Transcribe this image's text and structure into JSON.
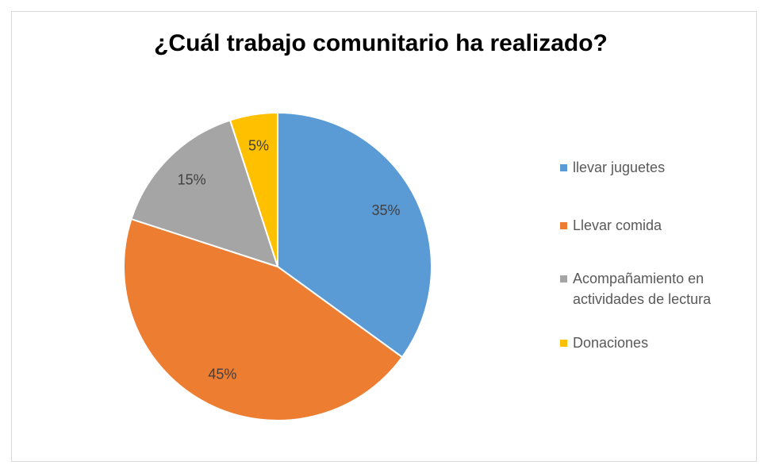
{
  "chart_data": {
    "type": "pie",
    "title": "¿Cuál trabajo comunitario ha realizado?",
    "categories": [
      "llevar juguetes",
      "Llevar comida",
      "Acompañamiento en actividades de lectura",
      "Donaciones"
    ],
    "values": [
      35,
      45,
      15,
      5
    ],
    "value_labels": [
      "35%",
      "45%",
      "15%",
      "5%"
    ],
    "colors": [
      "#5b9bd5",
      "#ed7d31",
      "#a5a5a5",
      "#ffc000"
    ],
    "legend": "right"
  }
}
